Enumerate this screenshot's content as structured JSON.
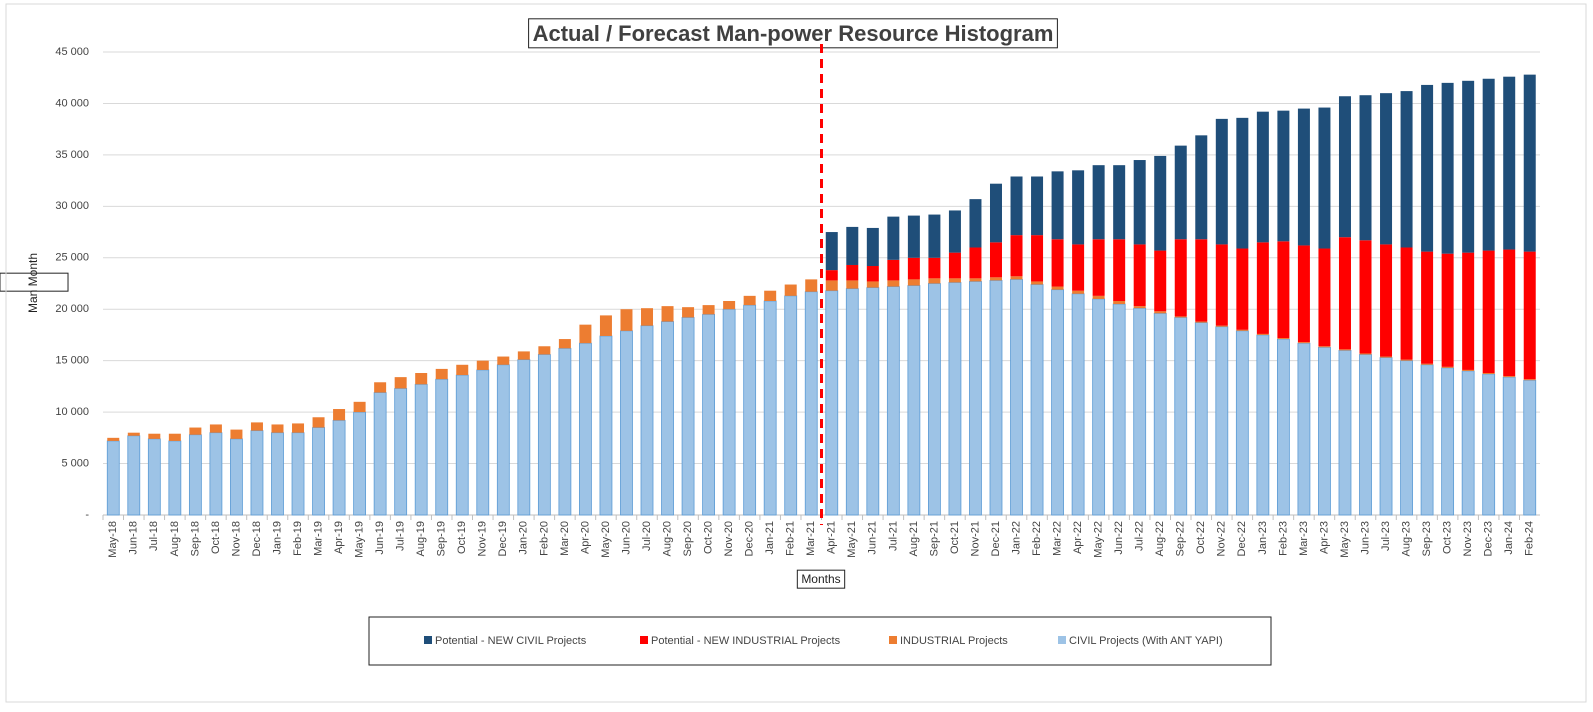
{
  "chart_data": {
    "type": "bar",
    "stacked": true,
    "title": "Actual / Forecast Man-power Resource Histogram",
    "x_label": "Months",
    "y_label": "Man Month",
    "categories": [
      "May-18",
      "Jun-18",
      "Jul-18",
      "Aug-18",
      "Sep-18",
      "Oct-18",
      "Nov-18",
      "Dec-18",
      "Jan-19",
      "Feb-19",
      "Mar-19",
      "Apr-19",
      "May-19",
      "Jun-19",
      "Jul-19",
      "Aug-19",
      "Sep-19",
      "Oct-19",
      "Nov-19",
      "Dec-19",
      "Jan-20",
      "Feb-20",
      "Mar-20",
      "Apr-20",
      "May-20",
      "Jun-20",
      "Jul-20",
      "Aug-20",
      "Sep-20",
      "Oct-20",
      "Nov-20",
      "Dec-20",
      "Jan-21",
      "Feb-21",
      "Mar-21",
      "Apr-21",
      "May-21",
      "Jun-21",
      "Jul-21",
      "Aug-21",
      "Sep-21",
      "Oct-21",
      "Nov-21",
      "Dec-21",
      "Jan-22",
      "Feb-22",
      "Mar-22",
      "Apr-22",
      "May-22",
      "Jun-22",
      "Jul-22",
      "Aug-22",
      "Sep-22",
      "Oct-22",
      "Nov-22",
      "Dec-22",
      "Jan-23",
      "Feb-23",
      "Mar-23",
      "Apr-23",
      "May-23",
      "Jun-23",
      "Jul-23",
      "Aug-23",
      "Sep-23",
      "Oct-23",
      "Nov-23",
      "Dec-23",
      "Jan-24",
      "Feb-24"
    ],
    "series": [
      {
        "name": "CIVIL Projects (With ANT YAPI)",
        "color": "#9dc3e6",
        "values": [
          7200,
          7700,
          7400,
          7200,
          7800,
          8000,
          7400,
          8200,
          8000,
          8000,
          8500,
          9200,
          10000,
          11900,
          12300,
          12700,
          13200,
          13600,
          14100,
          14600,
          15100,
          15600,
          16200,
          16700,
          17400,
          17900,
          18400,
          18800,
          19200,
          19500,
          20000,
          20400,
          20800,
          21300,
          21700,
          21800,
          22000,
          22100,
          22200,
          22300,
          22500,
          22600,
          22700,
          22800,
          22900,
          22400,
          21900,
          21500,
          21000,
          20500,
          20100,
          19600,
          19200,
          18700,
          18300,
          17900,
          17500,
          17100,
          16700,
          16300,
          16000,
          15600,
          15300,
          15000,
          14600,
          14300,
          14000,
          13700,
          13400,
          13100
        ]
      },
      {
        "name": "INDUSTRIAL Projects",
        "color": "#ed7d31",
        "values": [
          300,
          300,
          500,
          700,
          700,
          800,
          900,
          800,
          800,
          900,
          1000,
          1100,
          1000,
          1000,
          1100,
          1100,
          1000,
          1000,
          900,
          800,
          800,
          800,
          900,
          1800,
          2000,
          2100,
          1700,
          1500,
          1000,
          900,
          800,
          900,
          1000,
          1100,
          1200,
          1000,
          800,
          600,
          600,
          600,
          500,
          400,
          300,
          300,
          300,
          300,
          300,
          300,
          300,
          300,
          200,
          200,
          100,
          100,
          100,
          100,
          100,
          100,
          100,
          100,
          100,
          100,
          100,
          100,
          100,
          100,
          100,
          100,
          100,
          100
        ]
      },
      {
        "name": "Potential - NEW INDUSTRIAL Projects",
        "color": "#ff0000",
        "values": [
          null,
          null,
          null,
          null,
          null,
          null,
          null,
          null,
          null,
          null,
          null,
          null,
          null,
          null,
          null,
          null,
          null,
          null,
          null,
          null,
          null,
          null,
          null,
          null,
          null,
          null,
          null,
          null,
          null,
          null,
          null,
          null,
          null,
          null,
          null,
          1000,
          1500,
          1500,
          2000,
          2100,
          2000,
          2500,
          3000,
          3400,
          4000,
          4500,
          4600,
          4500,
          5500,
          6000,
          6000,
          5900,
          7500,
          8000,
          7900,
          7900,
          8900,
          9400,
          9400,
          9500,
          10900,
          11000,
          10900,
          10900,
          10900,
          11000,
          11400,
          11900,
          12300,
          12400
        ]
      },
      {
        "name": "Potential - NEW CIVIL Projects",
        "color": "#1f4e79",
        "values": [
          null,
          null,
          null,
          null,
          null,
          null,
          null,
          null,
          null,
          null,
          null,
          null,
          null,
          null,
          null,
          null,
          null,
          null,
          null,
          null,
          null,
          null,
          null,
          null,
          null,
          null,
          null,
          null,
          null,
          null,
          null,
          null,
          null,
          null,
          null,
          3700,
          3700,
          3700,
          4200,
          4100,
          4200,
          4100,
          4700,
          5700,
          5700,
          5700,
          6600,
          7200,
          7200,
          7200,
          8200,
          9200,
          9100,
          10100,
          12200,
          12700,
          12700,
          12700,
          13300,
          13700,
          13700,
          14100,
          14700,
          15200,
          16200,
          16600,
          16700,
          16700,
          16800,
          17200
        ]
      }
    ],
    "ylim": [
      0,
      45000
    ],
    "yticks": [
      {
        "value": 0,
        "label": "-"
      },
      {
        "value": 5000,
        "label": "5 000"
      },
      {
        "value": 10000,
        "label": "10 000"
      },
      {
        "value": 15000,
        "label": "15 000"
      },
      {
        "value": 20000,
        "label": "20 000"
      },
      {
        "value": 25000,
        "label": "25 000"
      },
      {
        "value": 30000,
        "label": "30 000"
      },
      {
        "value": 35000,
        "label": "35 000"
      },
      {
        "value": 40000,
        "label": "40 000"
      },
      {
        "value": 45000,
        "label": "45 000"
      }
    ],
    "grid": true,
    "legend": "bottom"
  }
}
